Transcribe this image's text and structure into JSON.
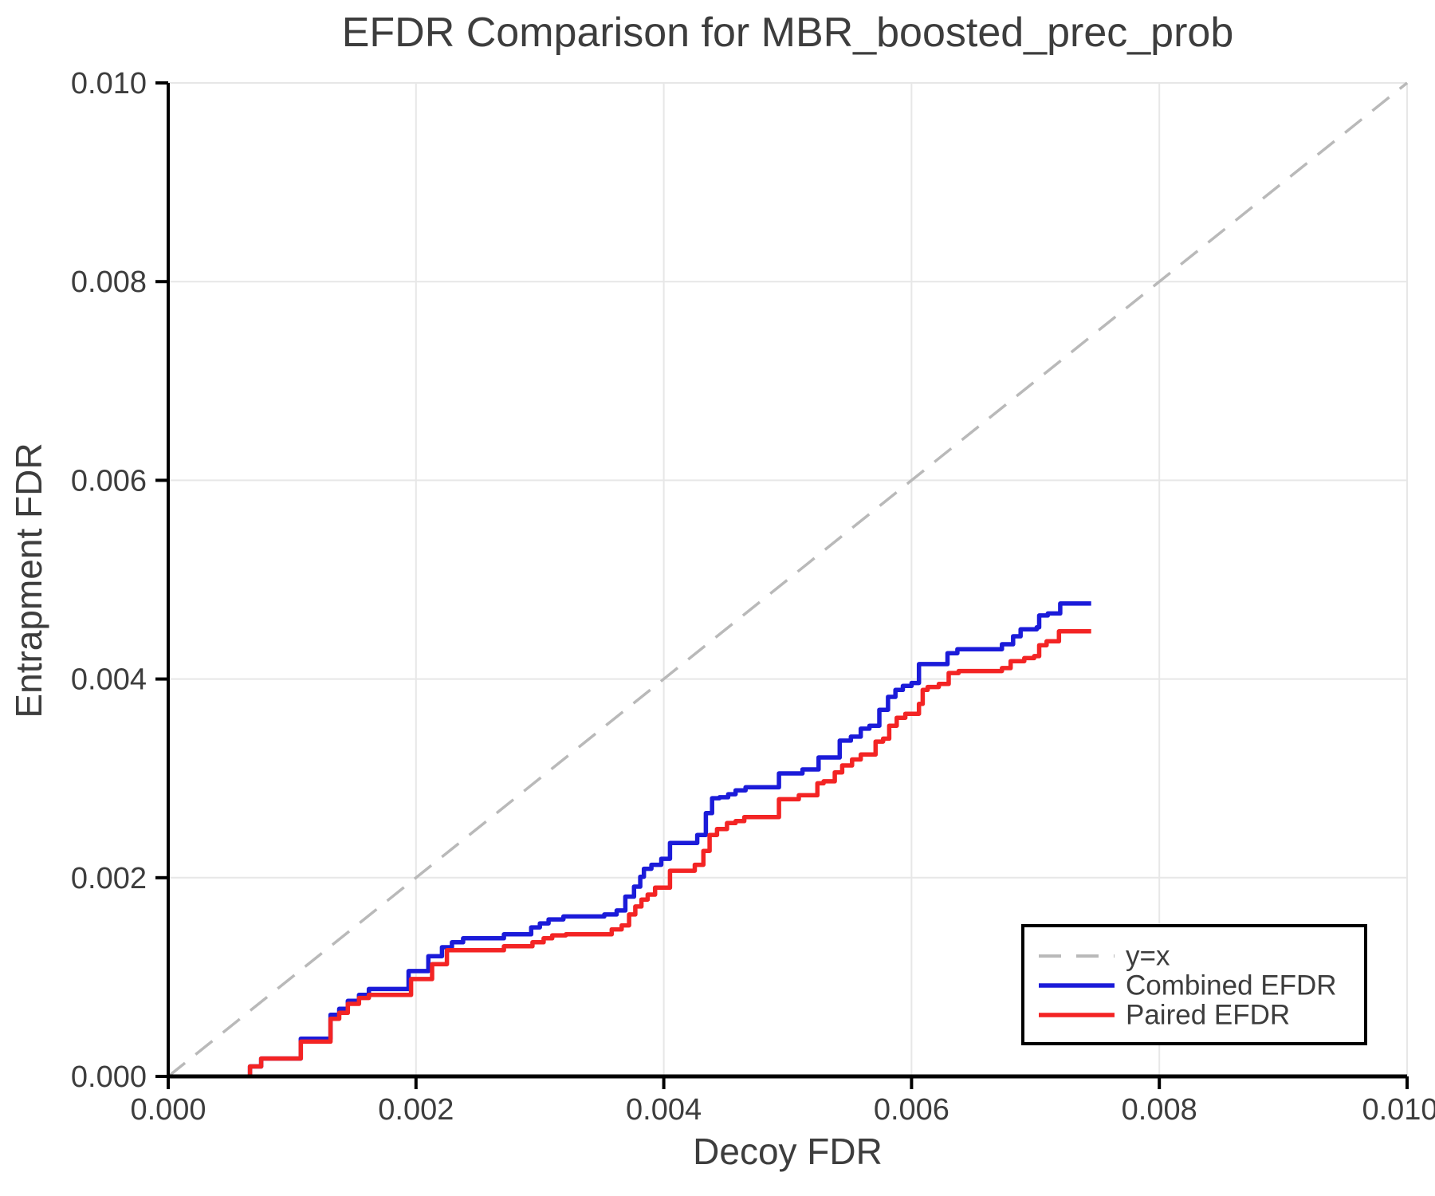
{
  "chart_data": {
    "type": "line",
    "title": "EFDR Comparison for MBR_boosted_prec_prob",
    "xlabel": "Decoy FDR",
    "ylabel": "Entrapment FDR",
    "xlim": [
      0.0,
      0.01
    ],
    "ylim": [
      0.0,
      0.01
    ],
    "xticks": [
      0.0,
      0.002,
      0.004,
      0.006,
      0.008,
      0.01
    ],
    "xtick_labels": [
      "0.000",
      "0.002",
      "0.004",
      "0.006",
      "0.008",
      "0.010"
    ],
    "yticks": [
      0.0,
      0.002,
      0.004,
      0.006,
      0.008,
      0.01
    ],
    "ytick_labels": [
      "0.000",
      "0.002",
      "0.004",
      "0.006",
      "0.008",
      "0.010"
    ],
    "grid": true,
    "legend_position": "lower right",
    "identity_line": {
      "label": "y=x",
      "style": "dashed",
      "color": "#b9b9b9",
      "from": [
        0.0,
        0.0
      ],
      "to": [
        0.01,
        0.01
      ]
    },
    "series": [
      {
        "name": "Combined EFDR",
        "color": "#1b1bd9",
        "interpolation": "step",
        "points": [
          [
            0.00066,
            0.0
          ],
          [
            0.00066,
            0.0001
          ],
          [
            0.00075,
            0.00018
          ],
          [
            0.00107,
            0.00038
          ],
          [
            0.00131,
            0.00062
          ],
          [
            0.00138,
            0.00068
          ],
          [
            0.00145,
            0.00076
          ],
          [
            0.00154,
            0.00082
          ],
          [
            0.00162,
            0.00088
          ],
          [
            0.00194,
            0.00106
          ],
          [
            0.0021,
            0.00121
          ],
          [
            0.00221,
            0.0013
          ],
          [
            0.00229,
            0.00135
          ],
          [
            0.00238,
            0.00139
          ],
          [
            0.00271,
            0.00143
          ],
          [
            0.00293,
            0.0015
          ],
          [
            0.003,
            0.00154
          ],
          [
            0.00307,
            0.00158
          ],
          [
            0.00319,
            0.00161
          ],
          [
            0.00352,
            0.00163
          ],
          [
            0.00362,
            0.00167
          ],
          [
            0.00369,
            0.00181
          ],
          [
            0.00376,
            0.00191
          ],
          [
            0.00381,
            0.00201
          ],
          [
            0.00384,
            0.00209
          ],
          [
            0.0039,
            0.00213
          ],
          [
            0.00398,
            0.00219
          ],
          [
            0.00405,
            0.00235
          ],
          [
            0.00427,
            0.00243
          ],
          [
            0.00434,
            0.00265
          ],
          [
            0.00439,
            0.0028
          ],
          [
            0.00445,
            0.00281
          ],
          [
            0.00452,
            0.00284
          ],
          [
            0.00458,
            0.00288
          ],
          [
            0.00466,
            0.00291
          ],
          [
            0.00493,
            0.00305
          ],
          [
            0.00512,
            0.00309
          ],
          [
            0.00525,
            0.00321
          ],
          [
            0.00542,
            0.00338
          ],
          [
            0.00551,
            0.00342
          ],
          [
            0.00559,
            0.0035
          ],
          [
            0.00566,
            0.00353
          ],
          [
            0.00574,
            0.00369
          ],
          [
            0.00581,
            0.00382
          ],
          [
            0.00587,
            0.00389
          ],
          [
            0.00593,
            0.00393
          ],
          [
            0.006,
            0.00396
          ],
          [
            0.00606,
            0.00415
          ],
          [
            0.00629,
            0.00426
          ],
          [
            0.00637,
            0.0043
          ],
          [
            0.00673,
            0.00435
          ],
          [
            0.00682,
            0.00443
          ],
          [
            0.00688,
            0.0045
          ],
          [
            0.00701,
            0.00452
          ],
          [
            0.00703,
            0.00464
          ],
          [
            0.0071,
            0.00466
          ],
          [
            0.0072,
            0.00476
          ],
          [
            0.00745,
            0.00476
          ]
        ]
      },
      {
        "name": "Paired EFDR",
        "color": "#f32424",
        "interpolation": "step",
        "points": [
          [
            0.00066,
            0.0
          ],
          [
            0.00066,
            0.0001
          ],
          [
            0.00075,
            0.00018
          ],
          [
            0.00107,
            0.00035
          ],
          [
            0.00131,
            0.00058
          ],
          [
            0.00138,
            0.00064
          ],
          [
            0.00145,
            0.00073
          ],
          [
            0.00154,
            0.00079
          ],
          [
            0.00162,
            0.00082
          ],
          [
            0.00196,
            0.00098
          ],
          [
            0.00213,
            0.00113
          ],
          [
            0.00225,
            0.00127
          ],
          [
            0.00271,
            0.00131
          ],
          [
            0.00294,
            0.00135
          ],
          [
            0.00303,
            0.00139
          ],
          [
            0.0031,
            0.00142
          ],
          [
            0.00321,
            0.00143
          ],
          [
            0.00358,
            0.00148
          ],
          [
            0.00366,
            0.00152
          ],
          [
            0.00372,
            0.00163
          ],
          [
            0.00377,
            0.00171
          ],
          [
            0.00382,
            0.00178
          ],
          [
            0.00387,
            0.00183
          ],
          [
            0.00393,
            0.0019
          ],
          [
            0.00405,
            0.00207
          ],
          [
            0.00425,
            0.00213
          ],
          [
            0.00432,
            0.00227
          ],
          [
            0.00437,
            0.00243
          ],
          [
            0.00443,
            0.00249
          ],
          [
            0.00451,
            0.00255
          ],
          [
            0.00458,
            0.00257
          ],
          [
            0.00465,
            0.00261
          ],
          [
            0.00493,
            0.00279
          ],
          [
            0.00509,
            0.00283
          ],
          [
            0.00524,
            0.00295
          ],
          [
            0.00529,
            0.00297
          ],
          [
            0.00538,
            0.00306
          ],
          [
            0.00544,
            0.00313
          ],
          [
            0.00552,
            0.00319
          ],
          [
            0.00559,
            0.00324
          ],
          [
            0.00571,
            0.00337
          ],
          [
            0.00577,
            0.0034
          ],
          [
            0.00582,
            0.00353
          ],
          [
            0.00588,
            0.00361
          ],
          [
            0.00595,
            0.00365
          ],
          [
            0.00606,
            0.00375
          ],
          [
            0.00609,
            0.00389
          ],
          [
            0.00613,
            0.00392
          ],
          [
            0.00622,
            0.00395
          ],
          [
            0.0063,
            0.00406
          ],
          [
            0.00638,
            0.00408
          ],
          [
            0.00673,
            0.00411
          ],
          [
            0.0068,
            0.00418
          ],
          [
            0.00691,
            0.00421
          ],
          [
            0.00699,
            0.00423
          ],
          [
            0.00703,
            0.00434
          ],
          [
            0.00709,
            0.00438
          ],
          [
            0.00719,
            0.00448
          ],
          [
            0.00745,
            0.00448
          ]
        ]
      }
    ]
  },
  "styles": {
    "text_color": "#3d3d3d",
    "grid_color": "#e7e7e7",
    "spine_color": "#000000",
    "background": "#ffffff",
    "identity_dash_color": "#b9b9b9",
    "combined_color": "#1b1bd9",
    "paired_color": "#f32424"
  }
}
